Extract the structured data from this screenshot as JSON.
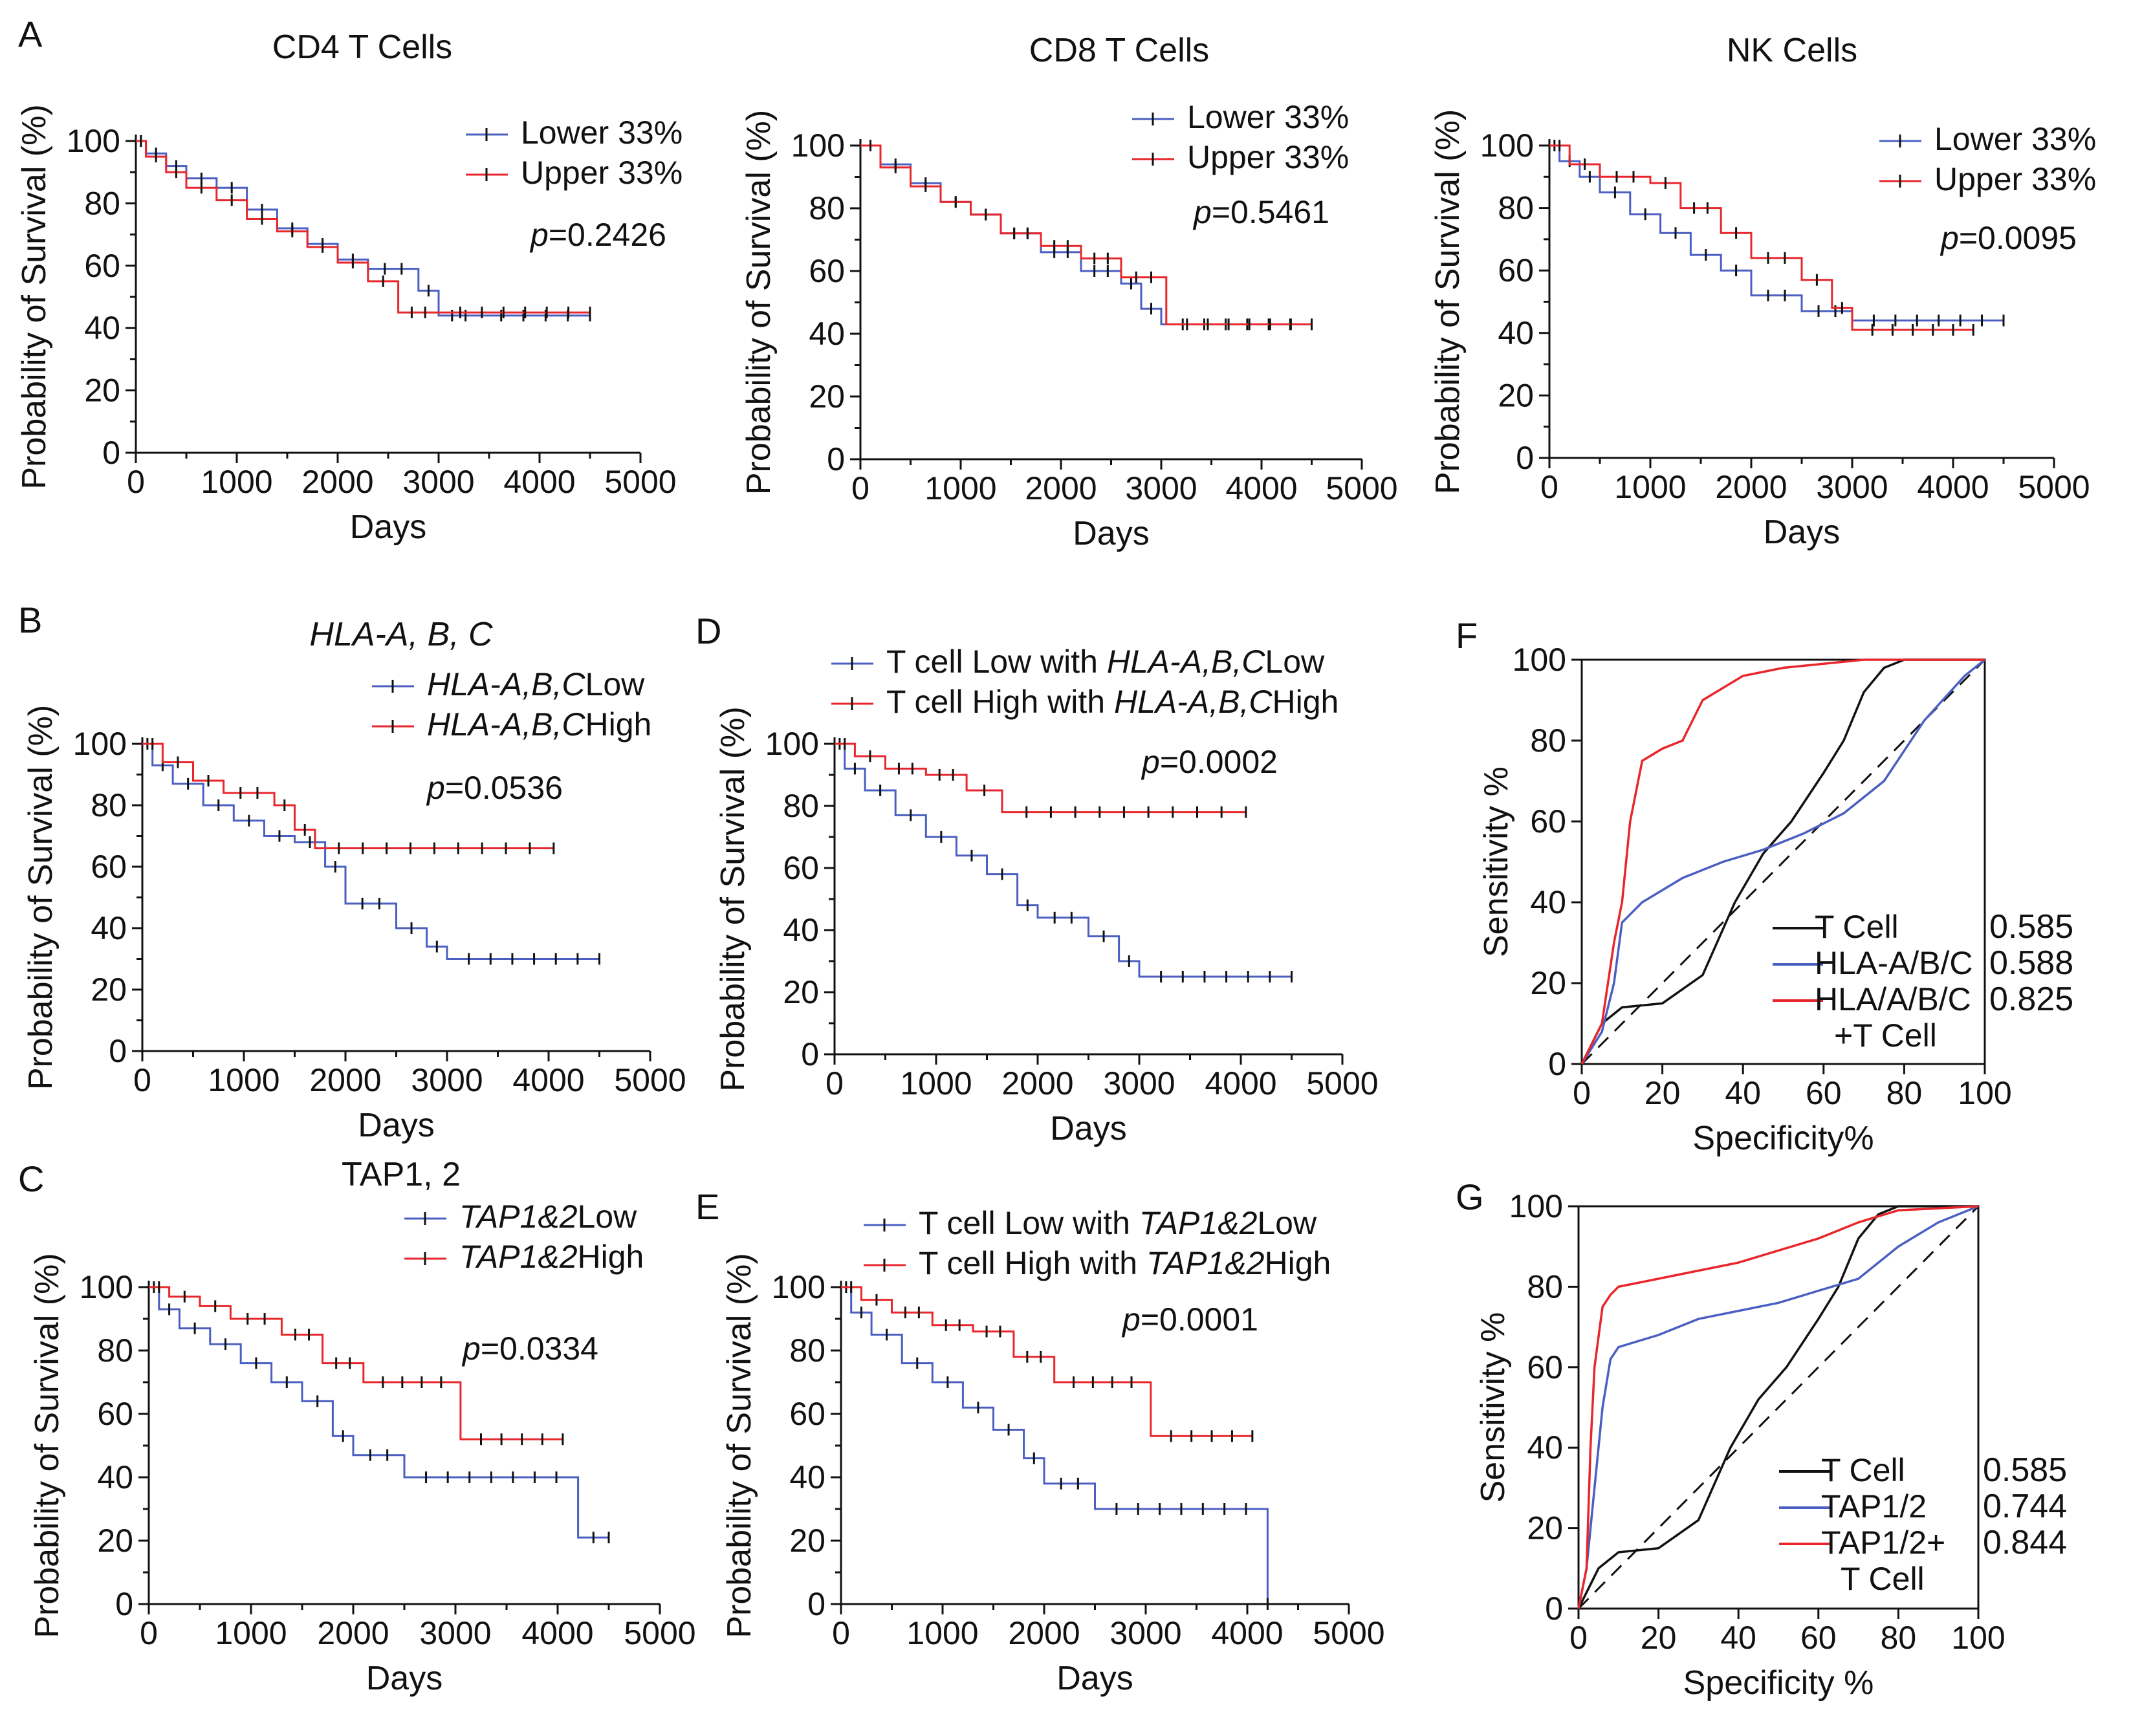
{
  "figure": {
    "colors": {
      "lower": "#4a5fc1",
      "upper": "#e8262b",
      "tcell": "#111111",
      "diagonal": "#111111",
      "auc_blue": "#2e3fa8",
      "auc_red": "#e8262b"
    }
  },
  "chart_data": [
    {
      "id": "A1",
      "panel_letter": "A",
      "type": "line",
      "subtype": "kaplan-meier",
      "title": "CD4 T Cells",
      "title_italic": false,
      "xlabel": "Days",
      "ylabel": "Probability of Survival (%)",
      "xlim": [
        0,
        5000
      ],
      "ylim": [
        0,
        100
      ],
      "xticks": [
        0,
        1000,
        2000,
        3000,
        4000,
        5000
      ],
      "yticks": [
        0,
        20,
        40,
        60,
        80,
        100
      ],
      "pvalue": "=0.2426",
      "pvalue_prefix": "p",
      "series": [
        {
          "key": "lower",
          "name": "Lower 33%",
          "color": "#4a5fc1",
          "x": [
            0,
            100,
            300,
            500,
            800,
            1100,
            1400,
            1700,
            2000,
            2300,
            2800,
            3000,
            3400,
            4500
          ],
          "y": [
            100,
            96,
            92,
            88,
            85,
            78,
            72,
            67,
            62,
            59,
            52,
            44,
            44,
            44
          ]
        },
        {
          "key": "upper",
          "name": "Upper 33%",
          "color": "#e8262b",
          "x": [
            0,
            100,
            300,
            500,
            800,
            1100,
            1400,
            1700,
            2000,
            2300,
            2600,
            3000,
            4500
          ],
          "y": [
            100,
            95,
            90,
            85,
            81,
            75,
            71,
            66,
            61,
            55,
            45,
            45,
            45
          ]
        }
      ]
    },
    {
      "id": "A2",
      "panel_letter": "",
      "type": "line",
      "subtype": "kaplan-meier",
      "title": "CD8 T Cells",
      "title_italic": false,
      "xlabel": "Days",
      "ylabel": "Probability of Survival (%)",
      "xlim": [
        0,
        5000
      ],
      "ylim": [
        0,
        100
      ],
      "xticks": [
        0,
        1000,
        2000,
        3000,
        4000,
        5000
      ],
      "yticks": [
        0,
        20,
        40,
        60,
        80,
        100
      ],
      "pvalue": "=0.5461",
      "pvalue_prefix": "p",
      "series": [
        {
          "key": "lower",
          "name": "Lower 33%",
          "color": "#4a5fc1",
          "x": [
            0,
            200,
            500,
            800,
            1100,
            1400,
            1800,
            2200,
            2600,
            2800,
            3000,
            4500
          ],
          "y": [
            100,
            94,
            88,
            82,
            78,
            72,
            66,
            60,
            56,
            48,
            43,
            43
          ]
        },
        {
          "key": "upper",
          "name": "Upper 33%",
          "color": "#e8262b",
          "x": [
            0,
            200,
            500,
            800,
            1100,
            1400,
            1800,
            2200,
            2600,
            3050,
            4500
          ],
          "y": [
            100,
            93,
            87,
            82,
            78,
            72,
            68,
            64,
            58,
            43,
            43
          ]
        }
      ]
    },
    {
      "id": "A3",
      "panel_letter": "",
      "type": "line",
      "subtype": "kaplan-meier",
      "title": "NK Cells",
      "title_italic": false,
      "xlabel": "Days",
      "ylabel": "Probability of Survival (%)",
      "xlim": [
        0,
        5000
      ],
      "ylim": [
        0,
        100
      ],
      "xticks": [
        0,
        1000,
        2000,
        3000,
        4000,
        5000
      ],
      "yticks": [
        0,
        20,
        40,
        60,
        80,
        100
      ],
      "pvalue": "=0.0095",
      "pvalue_prefix": "p",
      "series": [
        {
          "key": "lower",
          "name": "Lower 33%",
          "color": "#4a5fc1",
          "x": [
            0,
            100,
            300,
            500,
            800,
            1100,
            1400,
            1700,
            2000,
            2500,
            3000,
            4500
          ],
          "y": [
            100,
            95,
            90,
            85,
            78,
            72,
            65,
            60,
            52,
            47,
            44,
            44
          ]
        },
        {
          "key": "upper",
          "name": "Upper 33%",
          "color": "#e8262b",
          "x": [
            0,
            200,
            500,
            1000,
            1300,
            1700,
            2000,
            2500,
            2800,
            3000,
            4200
          ],
          "y": [
            100,
            94,
            90,
            88,
            80,
            72,
            64,
            57,
            48,
            41,
            41
          ]
        }
      ]
    },
    {
      "id": "B",
      "panel_letter": "B",
      "type": "line",
      "subtype": "kaplan-meier",
      "title": "HLA-A, B, C",
      "title_italic": true,
      "xlabel": "Days",
      "ylabel": "Probability of Survival (%)",
      "xlim": [
        0,
        5000
      ],
      "ylim": [
        0,
        100
      ],
      "xticks": [
        0,
        1000,
        2000,
        3000,
        4000,
        5000
      ],
      "yticks": [
        0,
        20,
        40,
        60,
        80,
        100
      ],
      "pvalue": "=0.0536",
      "pvalue_prefix": "p",
      "series": [
        {
          "key": "lower",
          "name": "Low",
          "name_italic": "HLA-A,B,C",
          "color": "#4a5fc1",
          "x": [
            0,
            100,
            300,
            600,
            900,
            1200,
            1500,
            1800,
            2000,
            2500,
            2800,
            3000,
            4500
          ],
          "y": [
            100,
            93,
            87,
            80,
            75,
            70,
            68,
            60,
            48,
            40,
            34,
            30,
            30
          ]
        },
        {
          "key": "upper",
          "name": "High",
          "name_italic": "HLA-A,B,C",
          "color": "#e8262b",
          "x": [
            0,
            200,
            500,
            800,
            1300,
            1500,
            1700,
            4050
          ],
          "y": [
            100,
            94,
            88,
            84,
            80,
            72,
            66,
            66
          ]
        }
      ]
    },
    {
      "id": "D",
      "panel_letter": "D",
      "type": "line",
      "subtype": "kaplan-meier",
      "title": "",
      "title_italic": false,
      "xlabel": "Days",
      "ylabel": "Probability of Survival (%)",
      "xlim": [
        0,
        5000
      ],
      "ylim": [
        0,
        100
      ],
      "xticks": [
        0,
        1000,
        2000,
        3000,
        4000,
        5000
      ],
      "yticks": [
        0,
        20,
        40,
        60,
        80,
        100
      ],
      "pvalue": "=0.0002",
      "pvalue_prefix": "p",
      "series": [
        {
          "key": "lower",
          "name_prefix": "T cell Low with ",
          "name_italic": "HLA-A,B,C",
          "name": "Low",
          "color": "#4a5fc1",
          "x": [
            0,
            100,
            300,
            600,
            900,
            1200,
            1500,
            1800,
            2000,
            2500,
            2800,
            3000,
            4500
          ],
          "y": [
            100,
            92,
            85,
            77,
            70,
            64,
            58,
            48,
            44,
            38,
            30,
            25,
            25
          ]
        },
        {
          "key": "upper",
          "name_prefix": "T cell High with ",
          "name_italic": "HLA-A,B,C",
          "name": "High",
          "color": "#e8262b",
          "x": [
            0,
            200,
            500,
            900,
            1300,
            1650,
            4050
          ],
          "y": [
            100,
            96,
            92,
            90,
            85,
            78,
            78
          ]
        }
      ]
    },
    {
      "id": "F",
      "panel_letter": "F",
      "type": "line",
      "subtype": "roc",
      "title": "",
      "xlabel": "Specificity%",
      "ylabel": "Sensitivity %",
      "xlim": [
        0,
        100
      ],
      "ylim": [
        0,
        100
      ],
      "xticks": [
        0,
        20,
        40,
        60,
        80,
        100
      ],
      "yticks": [
        0,
        20,
        40,
        60,
        80,
        100
      ],
      "series": [
        {
          "key": "tcell",
          "name": "T Cell",
          "name_line2": "",
          "auc": "0.585",
          "color": "#111111",
          "x": [
            0,
            5,
            10,
            20,
            30,
            38,
            45,
            52,
            60,
            65,
            70,
            75,
            80,
            90,
            100
          ],
          "y": [
            0,
            10,
            14,
            15,
            22,
            40,
            52,
            60,
            72,
            80,
            92,
            98,
            100,
            100,
            100
          ]
        },
        {
          "key": "blue",
          "name": "HLA-A/B/C",
          "name_line2": "",
          "auc": "0.588",
          "color": "#4a5fc1",
          "x": [
            0,
            5,
            8,
            10,
            15,
            25,
            35,
            45,
            55,
            65,
            75,
            85,
            95,
            100
          ],
          "y": [
            0,
            8,
            20,
            35,
            40,
            46,
            50,
            53,
            57,
            62,
            70,
            85,
            96,
            100
          ]
        },
        {
          "key": "red",
          "name": "HLA/A/B/C",
          "name_line2": "+T Cell",
          "auc": "0.825",
          "color": "#e8262b",
          "x": [
            0,
            5,
            8,
            10,
            12,
            15,
            20,
            25,
            30,
            40,
            50,
            60,
            70,
            80,
            100
          ],
          "y": [
            0,
            10,
            30,
            40,
            60,
            75,
            78,
            80,
            90,
            96,
            98,
            99,
            100,
            100,
            100
          ]
        }
      ]
    },
    {
      "id": "C",
      "panel_letter": "C",
      "type": "line",
      "subtype": "kaplan-meier",
      "title": "TAP1, 2",
      "title_italic": false,
      "xlabel": "Days",
      "ylabel": "Probability of Survival (%)",
      "xlim": [
        0,
        5000
      ],
      "ylim": [
        0,
        100
      ],
      "xticks": [
        0,
        1000,
        2000,
        3000,
        4000,
        5000
      ],
      "yticks": [
        0,
        20,
        40,
        60,
        80,
        100
      ],
      "pvalue": "=0.0334",
      "pvalue_prefix": "p",
      "series": [
        {
          "key": "lower",
          "name": "Low",
          "name_italic": "TAP1&2",
          "color": "#4a5fc1",
          "x": [
            0,
            100,
            300,
            600,
            900,
            1200,
            1500,
            1800,
            2000,
            2500,
            4200,
            4500
          ],
          "y": [
            100,
            93,
            87,
            82,
            76,
            70,
            64,
            53,
            47,
            40,
            21,
            21
          ]
        },
        {
          "key": "upper",
          "name": "High",
          "name_italic": "TAP1&2",
          "color": "#e8262b",
          "x": [
            0,
            200,
            500,
            800,
            1300,
            1700,
            2100,
            3050,
            4050
          ],
          "y": [
            100,
            97,
            94,
            90,
            85,
            76,
            70,
            52,
            52
          ]
        }
      ]
    },
    {
      "id": "E",
      "panel_letter": "E",
      "type": "line",
      "subtype": "kaplan-meier",
      "title": "",
      "title_italic": false,
      "xlabel": "Days",
      "ylabel": "Probability of Survival (%)",
      "xlim": [
        0,
        5000
      ],
      "ylim": [
        0,
        100
      ],
      "xticks": [
        0,
        1000,
        2000,
        3000,
        4000,
        5000
      ],
      "yticks": [
        0,
        20,
        40,
        60,
        80,
        100
      ],
      "pvalue": "=0.0001",
      "pvalue_prefix": "p",
      "series": [
        {
          "key": "lower",
          "name_prefix": "T cell Low with ",
          "name_italic": "TAP1&2",
          "name": "Low",
          "color": "#4a5fc1",
          "x": [
            0,
            100,
            300,
            600,
            900,
            1200,
            1500,
            1800,
            2000,
            2500,
            4200
          ],
          "y": [
            100,
            92,
            85,
            76,
            70,
            62,
            55,
            46,
            38,
            30,
            0
          ]
        },
        {
          "key": "upper",
          "name_prefix": "T cell High with ",
          "name_italic": "TAP1&2",
          "name": "High",
          "color": "#e8262b",
          "x": [
            0,
            200,
            500,
            900,
            1300,
            1700,
            2100,
            3050,
            4050
          ],
          "y": [
            100,
            96,
            92,
            88,
            86,
            78,
            70,
            53,
            53
          ]
        }
      ]
    },
    {
      "id": "G",
      "panel_letter": "G",
      "type": "line",
      "subtype": "roc",
      "title": "",
      "xlabel": "Specificity %",
      "ylabel": "Sensitivity %",
      "xlim": [
        0,
        100
      ],
      "ylim": [
        0,
        100
      ],
      "xticks": [
        0,
        20,
        40,
        60,
        80,
        100
      ],
      "yticks": [
        0,
        20,
        40,
        60,
        80,
        100
      ],
      "series": [
        {
          "key": "tcell",
          "name": "T Cell",
          "name_line2": "",
          "auc": "0.585",
          "color": "#111111",
          "x": [
            0,
            5,
            10,
            20,
            30,
            38,
            45,
            52,
            60,
            65,
            70,
            75,
            80,
            90,
            100
          ],
          "y": [
            0,
            10,
            14,
            15,
            22,
            40,
            52,
            60,
            72,
            80,
            92,
            98,
            100,
            100,
            100
          ]
        },
        {
          "key": "blue",
          "name": "TAP1/2",
          "name_line2": "",
          "auc": "0.744",
          "color": "#4a5fc1",
          "x": [
            0,
            2,
            4,
            6,
            8,
            10,
            20,
            30,
            50,
            70,
            80,
            90,
            100
          ],
          "y": [
            0,
            10,
            30,
            50,
            62,
            65,
            68,
            72,
            76,
            82,
            90,
            96,
            100
          ]
        },
        {
          "key": "red",
          "name": "TAP1/2+",
          "name_line2": "T Cell",
          "auc": "0.844",
          "color": "#e8262b",
          "x": [
            0,
            2,
            3,
            4,
            6,
            8,
            10,
            20,
            40,
            60,
            70,
            80,
            100
          ],
          "y": [
            0,
            10,
            40,
            60,
            75,
            78,
            80,
            82,
            86,
            92,
            96,
            99,
            100
          ]
        }
      ]
    }
  ]
}
